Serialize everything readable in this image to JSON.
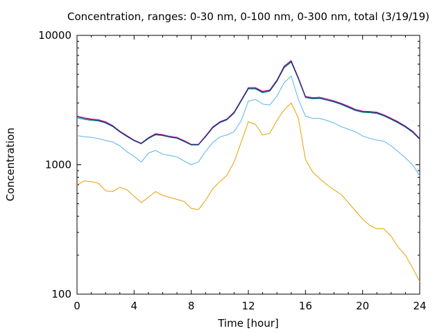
{
  "chart_data": {
    "type": "line",
    "title": "Concentration, ranges: 0-30 nm, 0-100 nm, 0-300 nm, total (3/19/19)",
    "xlabel": "Time [hour]",
    "ylabel": "Concentration",
    "xlim": [
      0,
      24
    ],
    "ylim": [
      100,
      10000
    ],
    "yscale": "log",
    "x_ticks": [
      "0",
      "4",
      "8",
      "12",
      "16",
      "20",
      "24"
    ],
    "y_ticks": [
      "100",
      "1000",
      "10000"
    ],
    "grid": false,
    "legend": "none",
    "x": [
      0,
      0.5,
      1,
      1.5,
      2,
      2.5,
      3,
      3.5,
      4,
      4.5,
      5,
      5.5,
      6,
      6.5,
      7,
      7.5,
      8,
      8.5,
      9,
      9.5,
      10,
      10.5,
      11,
      11.5,
      12,
      12.5,
      13,
      13.5,
      14,
      14.5,
      15,
      15.5,
      16,
      16.5,
      17,
      17.5,
      18,
      18.5,
      19,
      19.5,
      20,
      20.5,
      21,
      21.5,
      22,
      22.5,
      23,
      23.5,
      24
    ],
    "series": [
      {
        "color": "#e69f00",
        "values": [
          700,
          750,
          740,
          720,
          630,
          620,
          670,
          640,
          570,
          510,
          560,
          620,
          580,
          560,
          540,
          520,
          460,
          450,
          530,
          650,
          740,
          830,
          1050,
          1500,
          2150,
          2050,
          1700,
          1750,
          2200,
          2650,
          3000,
          2300,
          1100,
          880,
          780,
          700,
          640,
          590,
          510,
          440,
          380,
          340,
          320,
          320,
          280,
          230,
          200,
          160,
          125
        ]
      },
      {
        "color": "#56b4e9",
        "values": [
          1680,
          1650,
          1630,
          1590,
          1540,
          1500,
          1400,
          1260,
          1160,
          1050,
          1230,
          1290,
          1210,
          1180,
          1150,
          1070,
          1000,
          1050,
          1270,
          1480,
          1640,
          1700,
          1800,
          2200,
          3100,
          3200,
          2950,
          2900,
          3400,
          4300,
          4850,
          3200,
          2380,
          2280,
          2280,
          2200,
          2100,
          1970,
          1880,
          1800,
          1670,
          1600,
          1550,
          1520,
          1400,
          1260,
          1130,
          1000,
          820
        ]
      },
      {
        "color": "#009e73",
        "values": [
          2300,
          2240,
          2200,
          2180,
          2100,
          1970,
          1790,
          1650,
          1530,
          1450,
          1590,
          1700,
          1680,
          1630,
          1600,
          1510,
          1420,
          1420,
          1640,
          1920,
          2110,
          2220,
          2500,
          3100,
          3850,
          3850,
          3600,
          3700,
          4400,
          5600,
          6200,
          4600,
          3300,
          3230,
          3250,
          3150,
          3050,
          2920,
          2770,
          2620,
          2540,
          2520,
          2490,
          2380,
          2240,
          2100,
          1950,
          1780,
          1570
        ]
      },
      {
        "color": "#cc0099",
        "values": [
          2380,
          2310,
          2260,
          2230,
          2150,
          2010,
          1820,
          1680,
          1550,
          1470,
          1620,
          1740,
          1710,
          1660,
          1630,
          1540,
          1440,
          1440,
          1670,
          1960,
          2150,
          2260,
          2560,
          3170,
          3950,
          3950,
          3700,
          3790,
          4520,
          5780,
          6400,
          4730,
          3380,
          3300,
          3330,
          3230,
          3120,
          2990,
          2840,
          2680,
          2600,
          2580,
          2550,
          2430,
          2290,
          2150,
          1990,
          1820,
          1600
        ]
      },
      {
        "color": "#1a237e",
        "values": [
          2350,
          2280,
          2230,
          2200,
          2120,
          1990,
          1800,
          1660,
          1540,
          1460,
          1610,
          1720,
          1690,
          1640,
          1610,
          1520,
          1430,
          1430,
          1650,
          1940,
          2130,
          2240,
          2530,
          3140,
          3900,
          3900,
          3650,
          3740,
          4460,
          5690,
          6300,
          4660,
          3340,
          3260,
          3280,
          3180,
          3080,
          2950,
          2800,
          2650,
          2570,
          2550,
          2520,
          2400,
          2260,
          2120,
          1970,
          1800,
          1580
        ]
      }
    ]
  }
}
